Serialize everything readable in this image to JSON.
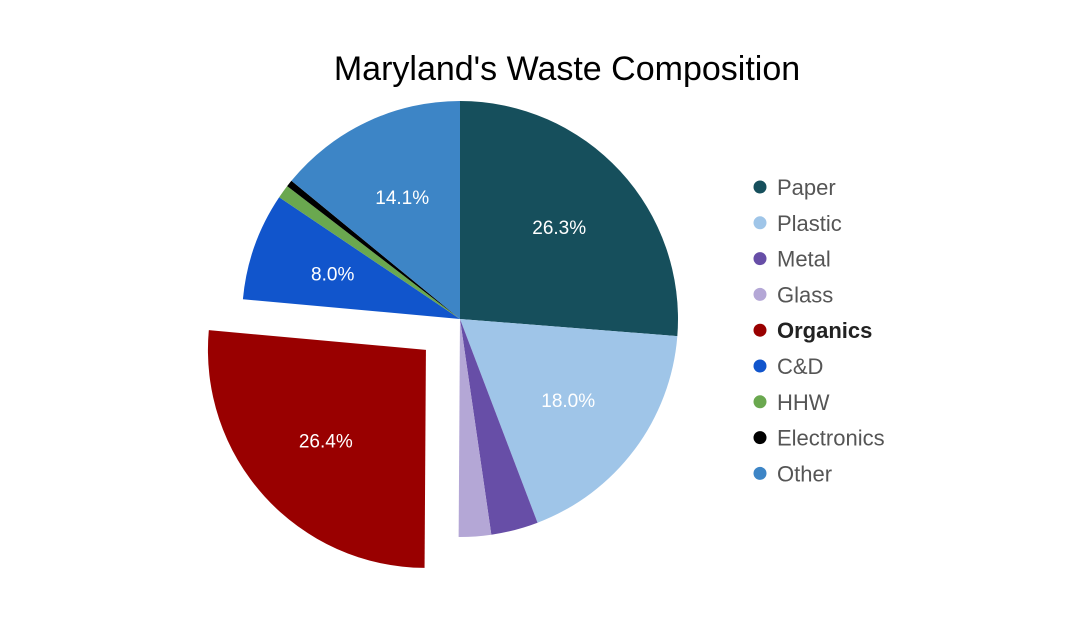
{
  "chart_data": {
    "type": "pie",
    "title": "Maryland's Waste Composition",
    "slices": [
      {
        "name": "Paper",
        "value": 26.3,
        "label": "26.3%",
        "color": "#164f5c"
      },
      {
        "name": "Plastic",
        "value": 18.0,
        "label": "18.0%",
        "color": "#9fc5e8"
      },
      {
        "name": "Metal",
        "value": 3.5,
        "label": "",
        "color": "#674ea7"
      },
      {
        "name": "Glass",
        "value": 2.4,
        "label": "",
        "color": "#b4a7d6"
      },
      {
        "name": "Organics",
        "value": 26.4,
        "label": "26.4%",
        "color": "#990000",
        "exploded": true
      },
      {
        "name": "C&D",
        "value": 8.0,
        "label": "8.0%",
        "color": "#1155cc"
      },
      {
        "name": "HHW",
        "value": 1.0,
        "label": "",
        "color": "#6aa84f"
      },
      {
        "name": "Electronics",
        "value": 0.5,
        "label": "",
        "color": "#000000"
      },
      {
        "name": "Other",
        "value": 14.1,
        "label": "14.1%",
        "color": "#3d85c6"
      }
    ],
    "legend": {
      "position": "right",
      "highlighted": "Organics"
    }
  }
}
